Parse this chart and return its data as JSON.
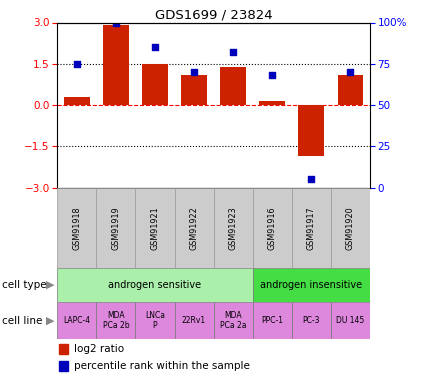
{
  "title": "GDS1699 / 23824",
  "samples": [
    "GSM91918",
    "GSM91919",
    "GSM91921",
    "GSM91922",
    "GSM91923",
    "GSM91916",
    "GSM91917",
    "GSM91920"
  ],
  "log2_ratio": [
    0.3,
    2.9,
    1.5,
    1.1,
    1.4,
    0.15,
    -1.85,
    1.1
  ],
  "percentile_rank": [
    75,
    100,
    85,
    70,
    82,
    68,
    5,
    70
  ],
  "cell_types": [
    {
      "label": "androgen sensitive",
      "span": [
        0,
        5
      ],
      "color": "#aaf0aa"
    },
    {
      "label": "androgen insensitive",
      "span": [
        5,
        8
      ],
      "color": "#44dd44"
    }
  ],
  "cell_lines": [
    {
      "label": "LAPC-4",
      "span": [
        0,
        1
      ]
    },
    {
      "label": "MDA\nPCa 2b",
      "span": [
        1,
        2
      ]
    },
    {
      "label": "LNCa\nP",
      "span": [
        2,
        3
      ]
    },
    {
      "label": "22Rv1",
      "span": [
        3,
        4
      ]
    },
    {
      "label": "MDA\nPCa 2a",
      "span": [
        4,
        5
      ]
    },
    {
      "label": "PPC-1",
      "span": [
        5,
        6
      ]
    },
    {
      "label": "PC-3",
      "span": [
        6,
        7
      ]
    },
    {
      "label": "DU 145",
      "span": [
        7,
        8
      ]
    }
  ],
  "cell_line_color": "#dd88dd",
  "bar_color": "#cc2200",
  "dot_color": "#0000bb",
  "ylim": [
    -3,
    3
  ],
  "yticks_left": [
    -3,
    -1.5,
    0,
    1.5,
    3
  ],
  "yticks_right_vals": [
    0,
    25,
    50,
    75,
    100
  ],
  "yticks_right_labels": [
    "0",
    "25",
    "50",
    "75",
    "100%"
  ],
  "hlines": [
    {
      "y": 1.5,
      "color": "black",
      "ls": ":"
    },
    {
      "y": 0.0,
      "color": "red",
      "ls": "--"
    },
    {
      "y": -1.5,
      "color": "black",
      "ls": ":"
    }
  ],
  "legend_log2": "log2 ratio",
  "legend_pct": "percentile rank within the sample",
  "label_cell_type": "cell type",
  "label_cell_line": "cell line",
  "sample_bg": "#cccccc",
  "arrow_color": "#888888"
}
